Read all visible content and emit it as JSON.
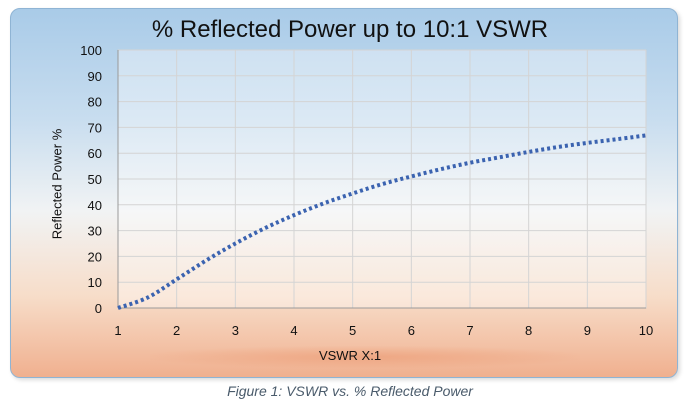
{
  "chart_data": {
    "type": "line",
    "title": "% Reflected Power up to 10:1 VSWR",
    "xlabel": "VSWR X:1",
    "ylabel": "Reflected Power %",
    "xlim": [
      1,
      10
    ],
    "ylim": [
      0,
      100
    ],
    "xticks": [
      1,
      2,
      3,
      4,
      5,
      6,
      7,
      8,
      9,
      10
    ],
    "yticks": [
      0,
      10,
      20,
      30,
      40,
      50,
      60,
      70,
      80,
      90,
      100
    ],
    "grid": true,
    "series": [
      {
        "line_style": "dotted",
        "color": "#3b63b0",
        "x": [
          1,
          1.5,
          2,
          2.5,
          3,
          3.5,
          4,
          4.5,
          5,
          5.5,
          6,
          6.5,
          7,
          7.5,
          8,
          8.5,
          9,
          9.5,
          10
        ],
        "y": [
          0,
          4,
          11.1,
          18.4,
          25,
          30.9,
          36,
          40.5,
          44.4,
          48,
          51,
          53.8,
          56.3,
          58.4,
          60.5,
          62.4,
          64,
          65.4,
          66.9
        ]
      }
    ]
  },
  "caption": "Figure 1: VSWR vs. % Reflected Power"
}
